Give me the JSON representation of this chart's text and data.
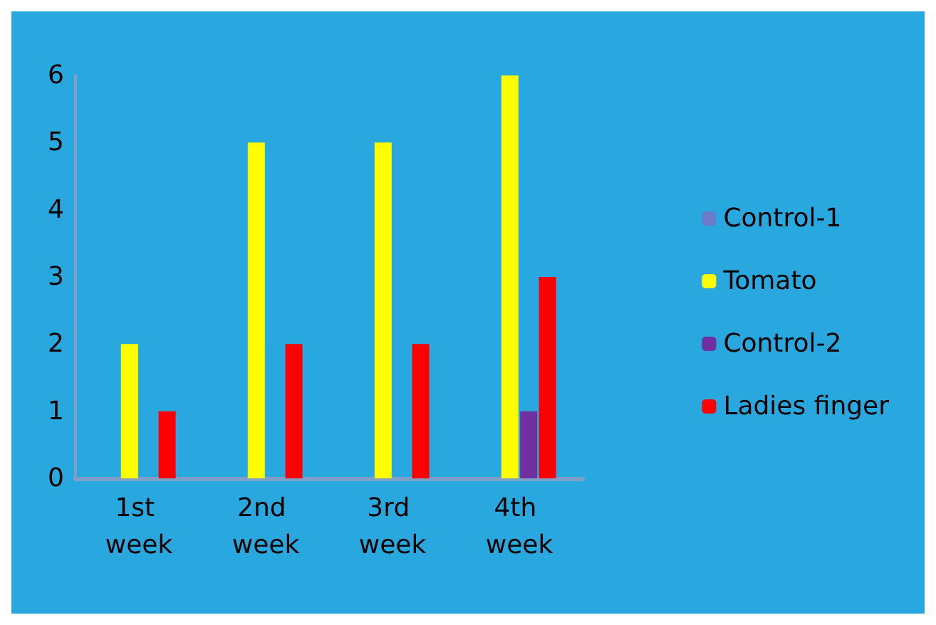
{
  "chart_data": {
    "type": "bar",
    "categories": [
      "1st week",
      "2nd week",
      "3rd week",
      "4th week"
    ],
    "series": [
      {
        "name": "Control-1",
        "color": "#6a7cc8",
        "values": [
          0,
          0,
          0,
          0
        ]
      },
      {
        "name": "Tomato",
        "color": "#ffff00",
        "values": [
          2,
          5,
          5,
          6
        ]
      },
      {
        "name": "Control-2",
        "color": "#7030a0",
        "values": [
          0,
          0,
          0,
          1
        ]
      },
      {
        "name": "Ladies finger",
        "color": "#ff0000",
        "values": [
          1,
          2,
          2,
          3
        ]
      }
    ],
    "ylim": [
      0,
      6
    ],
    "yticks": [
      0,
      1,
      2,
      3,
      4,
      5,
      6
    ],
    "grid": false,
    "legend": "right"
  }
}
